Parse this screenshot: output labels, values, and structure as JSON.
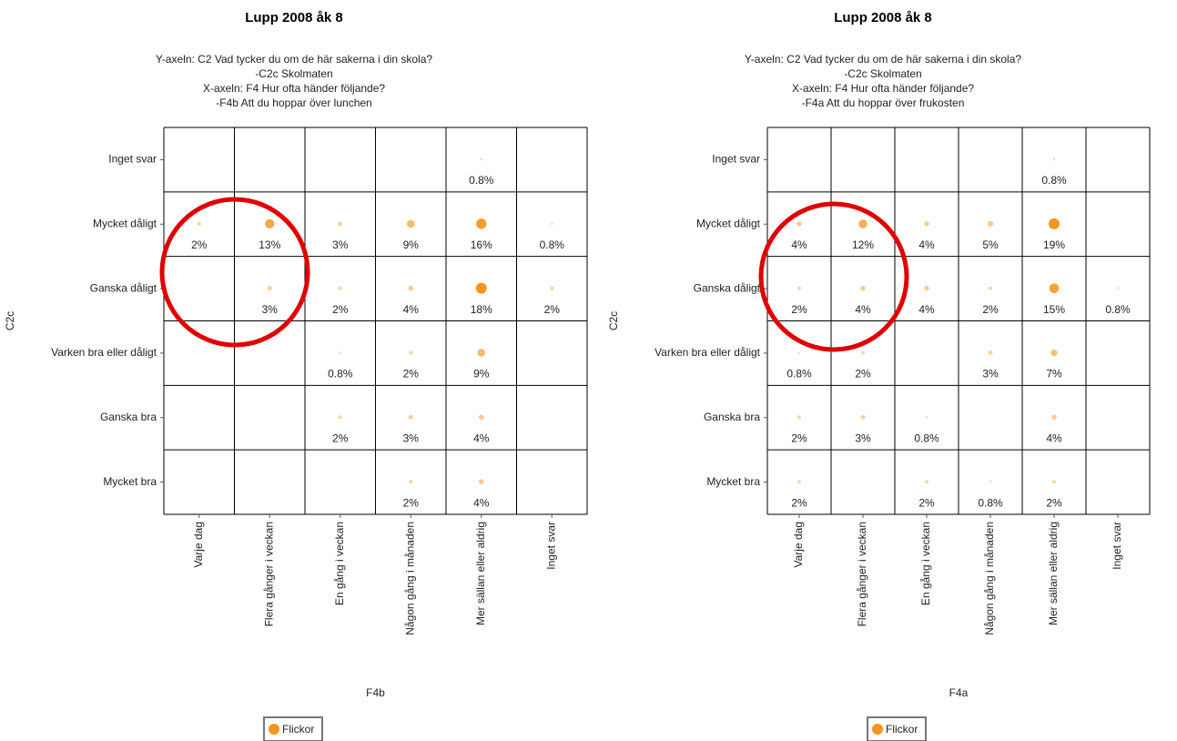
{
  "chart_data": [
    {
      "type": "bubble-grid",
      "title": "Lupp 2008 åk 8",
      "subtitle": [
        "Y-axeln: C2 Vad tycker du om de här sakerna i din skola?",
        "-C2c Skolmaten",
        "X-axeln: F4 Hur ofta händer följande?",
        "-F4b Att du hoppar över lunchen"
      ],
      "x_label": "F4b",
      "y_label": "C2c",
      "x_categories": [
        "Varje dag",
        "Flera gånger i veckan",
        "En gång i veckan",
        "Någon gång i månaden",
        "Mer sällan eller aldrig",
        "Inget svar"
      ],
      "y_categories": [
        "Inget svar",
        "Mycket dåligt",
        "Ganska dåligt",
        "Varken bra eller dåligt",
        "Ganska bra",
        "Mycket bra"
      ],
      "series": [
        {
          "name": "Flickor",
          "color": "#f7941d",
          "x": [
            "Mer sällan eller aldrig",
            "Varje dag",
            "Flera gånger i veckan",
            "En gång i veckan",
            "Någon gång i månaden",
            "Mer sällan eller aldrig",
            "Inget svar",
            "Flera gånger i veckan",
            "En gång i veckan",
            "Någon gång i månaden",
            "Mer sällan eller aldrig",
            "Inget svar",
            "En gång i veckan",
            "Någon gång i månaden",
            "Mer sällan eller aldrig",
            "En gång i veckan",
            "Någon gång i månaden",
            "Mer sällan eller aldrig",
            "Någon gång i månaden",
            "Mer sällan eller aldrig"
          ],
          "y": [
            "Inget svar",
            "Mycket dåligt",
            "Mycket dåligt",
            "Mycket dåligt",
            "Mycket dåligt",
            "Mycket dåligt",
            "Mycket dåligt",
            "Ganska dåligt",
            "Ganska dåligt",
            "Ganska dåligt",
            "Ganska dåligt",
            "Ganska dåligt",
            "Varken bra eller dåligt",
            "Varken bra eller dåligt",
            "Varken bra eller dåligt",
            "Ganska bra",
            "Ganska bra",
            "Ganska bra",
            "Mycket bra",
            "Mycket bra"
          ],
          "values": [
            0.8,
            2,
            13,
            3,
            9,
            16,
            0.8,
            3,
            2,
            4,
            18,
            2,
            0.8,
            2,
            9,
            2,
            3,
            4,
            2,
            4
          ],
          "value_labels": [
            "0.8%",
            "2%",
            "13%",
            "3%",
            "9%",
            "16%",
            "0.8%",
            "3%",
            "2%",
            "4%",
            "18%",
            "2%",
            "0.8%",
            "2%",
            "9%",
            "2%",
            "3%",
            "4%",
            "2%",
            "4%"
          ]
        }
      ]
    },
    {
      "type": "bubble-grid",
      "title": "Lupp 2008 åk 8",
      "subtitle": [
        "Y-axeln: C2 Vad tycker du om de här sakerna i din skola?",
        "-C2c Skolmaten",
        "X-axeln: F4 Hur ofta händer följande?",
        "-F4a Att du hoppar över frukosten"
      ],
      "x_label": "F4a",
      "y_label": "C2c",
      "x_categories": [
        "Varje dag",
        "Flera gånger i veckan",
        "En gång i veckan",
        "Någon gång i månaden",
        "Mer sällan eller aldrig",
        "Inget svar"
      ],
      "y_categories": [
        "Inget svar",
        "Mycket dåligt",
        "Ganska dåligt",
        "Varken bra eller dåligt",
        "Ganska bra",
        "Mycket bra"
      ],
      "series": [
        {
          "name": "Flickor",
          "color": "#f7941d",
          "x": [
            "Mer sällan eller aldrig",
            "Varje dag",
            "Flera gånger i veckan",
            "En gång i veckan",
            "Någon gång i månaden",
            "Mer sällan eller aldrig",
            "Varje dag",
            "Flera gånger i veckan",
            "En gång i veckan",
            "Någon gång i månaden",
            "Mer sällan eller aldrig",
            "Inget svar",
            "Varje dag",
            "Flera gånger i veckan",
            "Någon gång i månaden",
            "Mer sällan eller aldrig",
            "Varje dag",
            "Flera gånger i veckan",
            "En gång i veckan",
            "Mer sällan eller aldrig",
            "Varje dag",
            "En gång i veckan",
            "Någon gång i månaden",
            "Mer sällan eller aldrig"
          ],
          "y": [
            "Inget svar",
            "Mycket dåligt",
            "Mycket dåligt",
            "Mycket dåligt",
            "Mycket dåligt",
            "Mycket dåligt",
            "Ganska dåligt",
            "Ganska dåligt",
            "Ganska dåligt",
            "Ganska dåligt",
            "Ganska dåligt",
            "Ganska dåligt",
            "Varken bra eller dåligt",
            "Varken bra eller dåligt",
            "Varken bra eller dåligt",
            "Varken bra eller dåligt",
            "Ganska bra",
            "Ganska bra",
            "Ganska bra",
            "Ganska bra",
            "Mycket bra",
            "Mycket bra",
            "Mycket bra",
            "Mycket bra"
          ],
          "values": [
            0.8,
            4,
            12,
            4,
            5,
            19,
            2,
            4,
            4,
            2,
            15,
            0.8,
            0.8,
            2,
            3,
            7,
            2,
            3,
            0.8,
            4,
            2,
            2,
            0.8,
            2
          ],
          "value_labels": [
            "0.8%",
            "4%",
            "12%",
            "4%",
            "5%",
            "19%",
            "2%",
            "4%",
            "4%",
            "2%",
            "15%",
            "0.8%",
            "0.8%",
            "2%",
            "3%",
            "7%",
            "2%",
            "3%",
            "0.8%",
            "4%",
            "2%",
            "2%",
            "0.8%",
            "2%"
          ]
        }
      ]
    }
  ]
}
